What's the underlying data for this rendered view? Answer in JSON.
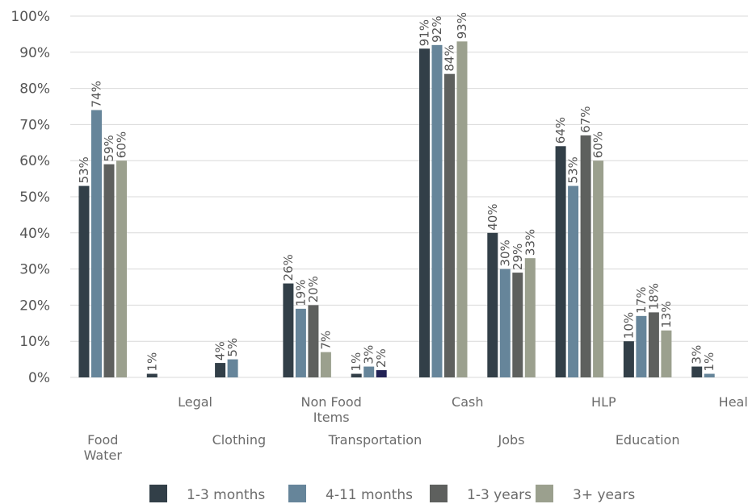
{
  "chart_data": {
    "type": "bar",
    "categories": [
      "Food Water",
      "Legal",
      "Clothing",
      "Non Food Items",
      "Transportation",
      "Cash",
      "Jobs",
      "HLP",
      "Education",
      "Health"
    ],
    "category_lines": [
      [
        "Food",
        "Water"
      ],
      [
        "Legal"
      ],
      [
        "Clothing"
      ],
      [
        "Non Food",
        "Items"
      ],
      [
        "Transportation"
      ],
      [
        "Cash"
      ],
      [
        "Jobs"
      ],
      [
        "HLP"
      ],
      [
        "Education"
      ],
      [
        "Health"
      ]
    ],
    "series": [
      {
        "name": "1-3  months",
        "color": "#323f48",
        "values": [
          53,
          1,
          4,
          26,
          1,
          91,
          40,
          64,
          10,
          3
        ]
      },
      {
        "name": "4-11  months",
        "color": "#66859a",
        "values": [
          74,
          null,
          5,
          19,
          3,
          92,
          30,
          53,
          17,
          1
        ]
      },
      {
        "name": "1-3  years",
        "color": "#5e605e",
        "values": [
          59,
          null,
          null,
          20,
          2,
          84,
          29,
          67,
          18,
          null
        ]
      },
      {
        "name": "3+  years",
        "color": "#9ba08e",
        "values": [
          60,
          null,
          null,
          7,
          null,
          93,
          33,
          60,
          13,
          null
        ]
      }
    ],
    "special_colors": {
      "Transportation|2": "#222255"
    },
    "yticks": [
      "0%",
      "10%",
      "20%",
      "30%",
      "40%",
      "50%",
      "60%",
      "70%",
      "80%",
      "90%",
      "100%"
    ],
    "ylim": [
      0,
      100
    ],
    "grid": true,
    "legend": "bottom",
    "title": "",
    "xlabel": "",
    "ylabel": ""
  }
}
